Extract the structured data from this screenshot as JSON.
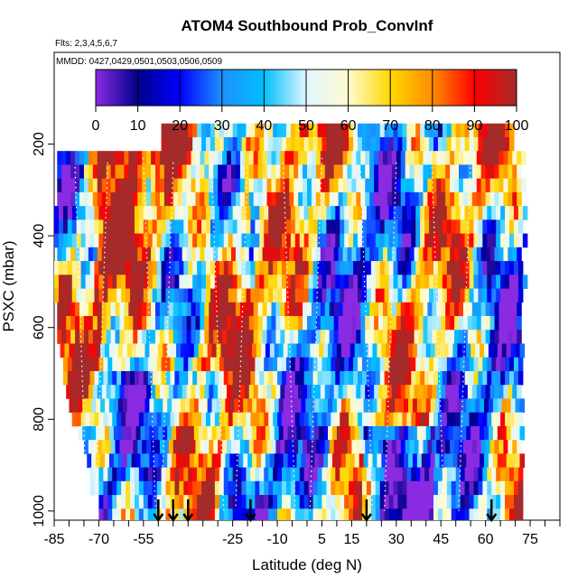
{
  "chart_data": {
    "type": "heatmap",
    "title": "ATOM4 Southbound Prob_ConvInf",
    "flights_label": "Flts: 2,3,4,5,6,7",
    "dates_label": "MMDD: 0427,0429,0501,0503,0506,0509",
    "xlabel": "Latitude (deg N)",
    "ylabel": "PSXC (mbar)",
    "xlim": [
      -85,
      85
    ],
    "ylim": [
      1020,
      0
    ],
    "x_tick_labels": [
      "-85",
      "-70",
      "-55",
      "-25",
      "-10",
      "5",
      "15",
      "30",
      "45",
      "60",
      "75"
    ],
    "x_tick_values": [
      -85,
      -70,
      -55,
      -25,
      -10,
      5,
      15,
      30,
      45,
      60,
      75
    ],
    "x_minor_ticks": [
      -85,
      -80,
      -75,
      -70,
      -65,
      -60,
      -55,
      -50,
      -45,
      -40,
      -35,
      -30,
      -25,
      -20,
      -15,
      -10,
      -5,
      0,
      5,
      10,
      15,
      20,
      25,
      30,
      35,
      40,
      45,
      50,
      55,
      60,
      65,
      70,
      75,
      80,
      85
    ],
    "y_tick_values": [
      200,
      400,
      600,
      800,
      1000
    ],
    "y_tick_labels": [
      "200",
      "400",
      "600",
      "800",
      "1000"
    ],
    "colorbar": {
      "min": 0,
      "max": 100,
      "tick_labels": [
        "0",
        "10",
        "20",
        "30",
        "40",
        "50",
        "60",
        "70",
        "80",
        "90",
        "100"
      ],
      "tick_values": [
        0,
        10,
        20,
        30,
        40,
        50,
        60,
        70,
        80,
        90,
        100
      ],
      "colors": [
        "#8a2be2",
        "#00008b",
        "#0000ff",
        "#1e90ff",
        "#00bfff",
        "#e0f6ff",
        "#fffbd0",
        "#ffd700",
        "#ff8c00",
        "#ff0000",
        "#a52a2a"
      ]
    },
    "levels_mbar": [
      170,
      200,
      230,
      260,
      290,
      320,
      350,
      380,
      410,
      440,
      470,
      500,
      530,
      560,
      590,
      620,
      650,
      680,
      710,
      740,
      770,
      800,
      830,
      860,
      890,
      920,
      950,
      980,
      1010
    ],
    "level_lat_bounds": [
      [
        -49,
        69
      ],
      [
        -49,
        69
      ],
      [
        -84,
        73
      ],
      [
        -84,
        72
      ],
      [
        -84,
        73
      ],
      [
        -84,
        72
      ],
      [
        -85,
        73
      ],
      [
        -85,
        72
      ],
      [
        -85,
        73
      ],
      [
        -84,
        72
      ],
      [
        -85,
        72
      ],
      [
        -85,
        73
      ],
      [
        -85,
        72
      ],
      [
        -84,
        72
      ],
      [
        -84,
        72
      ],
      [
        -84,
        72
      ],
      [
        -83,
        72
      ],
      [
        -82,
        72
      ],
      [
        -82,
        72
      ],
      [
        -81,
        72
      ],
      [
        -80,
        73
      ],
      [
        -79,
        72
      ],
      [
        -77,
        72
      ],
      [
        -75,
        72
      ],
      [
        -74,
        72
      ],
      [
        -73,
        72
      ],
      [
        -73,
        72
      ],
      [
        -70,
        72
      ],
      [
        -70,
        72
      ]
    ],
    "profile_tracks": [
      {
        "lat": -78,
        "p_top": 250,
        "p_bot": 1000
      },
      {
        "lat": -67,
        "p_top": 240,
        "p_bot": 1000
      },
      {
        "lat": -55,
        "p_top": 230,
        "p_bot": 990
      },
      {
        "lat": -45,
        "p_top": 240,
        "p_bot": 1000
      },
      {
        "lat": -32,
        "p_top": 260,
        "p_bot": 1000
      },
      {
        "lat": -20,
        "p_top": 250,
        "p_bot": 990
      },
      {
        "lat": -8,
        "p_top": 240,
        "p_bot": 1000
      },
      {
        "lat": 5,
        "p_top": 230,
        "p_bot": 1000
      },
      {
        "lat": 18,
        "p_top": 260,
        "p_bot": 990
      },
      {
        "lat": 30,
        "p_top": 240,
        "p_bot": 1000
      },
      {
        "lat": 42,
        "p_top": 250,
        "p_bot": 990
      },
      {
        "lat": 55,
        "p_top": 240,
        "p_bot": 1000
      }
    ],
    "arrow_markers_lat": [
      -50,
      -45,
      -40,
      -19,
      20,
      62
    ]
  }
}
